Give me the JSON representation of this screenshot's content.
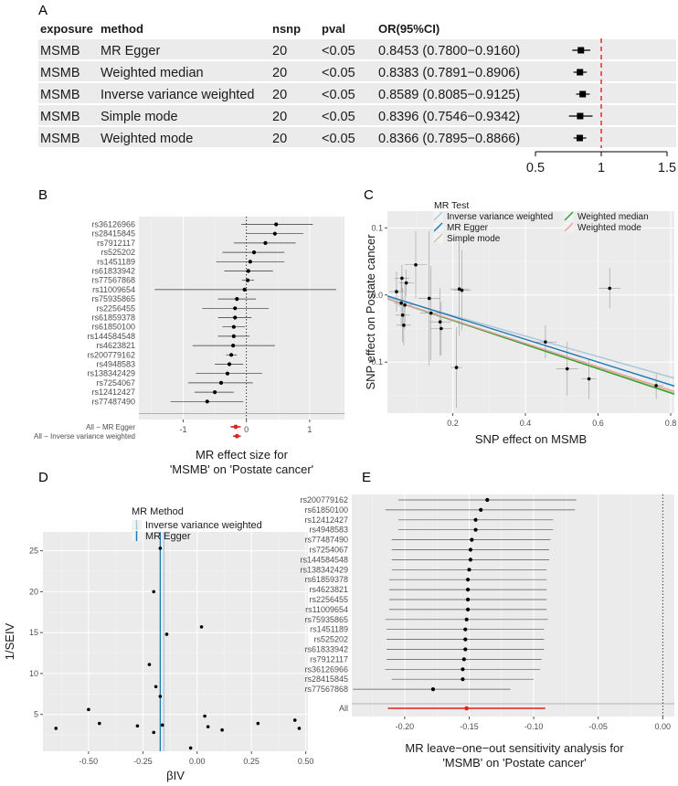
{
  "chart_data": [
    {
      "panel": "A",
      "type": "table",
      "columns": [
        "exposure",
        "method",
        "nsnp",
        "pval",
        "OR(95%CI)"
      ],
      "rows": [
        {
          "exposure": "MSMB",
          "method": "MR Egger",
          "nsnp": "20",
          "pval": "<0.05",
          "or_ci": "0.8453 (0.7800−0.9160)",
          "or": 0.8453,
          "lo": 0.78,
          "hi": 0.916
        },
        {
          "exposure": "MSMB",
          "method": "Weighted median",
          "nsnp": "20",
          "pval": "<0.05",
          "or_ci": "0.8383 (0.7891−0.8906)",
          "or": 0.8383,
          "lo": 0.7891,
          "hi": 0.8906
        },
        {
          "exposure": "MSMB",
          "method": "Inverse variance weighted",
          "nsnp": "20",
          "pval": "<0.05",
          "or_ci": "0.8589 (0.8085−0.9125)",
          "or": 0.8589,
          "lo": 0.8085,
          "hi": 0.9125
        },
        {
          "exposure": "MSMB",
          "method": "Simple mode",
          "nsnp": "20",
          "pval": "<0.05",
          "or_ci": "0.8396 (0.7546−0.9342)",
          "or": 0.8396,
          "lo": 0.7546,
          "hi": 0.9342
        },
        {
          "exposure": "MSMB",
          "method": "Weighted mode",
          "nsnp": "20",
          "pval": "<0.05",
          "or_ci": "0.8366 (0.7895−0.8866)",
          "or": 0.8366,
          "lo": 0.7895,
          "hi": 0.8866
        }
      ],
      "forest_axis": {
        "xlim": [
          0.5,
          1.5
        ],
        "ticks": [
          0.5,
          1,
          1.5
        ],
        "tick_labels": [
          "0.5",
          "1",
          "1.5"
        ],
        "ref": 1
      }
    },
    {
      "panel": "B",
      "type": "scatter",
      "title": "",
      "xlabel": "MR effect size for\n'MSMB' on 'Postate cancer'",
      "ylabel": "",
      "xlim": [
        -1.7,
        1.55
      ],
      "xticks": [
        -1,
        0,
        1
      ],
      "xtick_labels": [
        "-1",
        "0",
        "1"
      ],
      "snps": [
        {
          "label": "rs36126966",
          "b": 0.47,
          "lo": -0.08,
          "hi": 1.05
        },
        {
          "label": "rs28415845",
          "b": 0.45,
          "lo": 0.0,
          "hi": 0.9
        },
        {
          "label": "rs7912117",
          "b": 0.3,
          "lo": -0.2,
          "hi": 0.78
        },
        {
          "label": "rs525202",
          "b": 0.12,
          "lo": -0.38,
          "hi": 0.6
        },
        {
          "label": "rs1451189",
          "b": 0.06,
          "lo": -0.48,
          "hi": 0.6
        },
        {
          "label": "rs61833942",
          "b": 0.03,
          "lo": -0.35,
          "hi": 0.42
        },
        {
          "label": "rs77567868",
          "b": 0.02,
          "lo": -0.07,
          "hi": 0.12
        },
        {
          "label": "rs11009654",
          "b": -0.03,
          "lo": -1.45,
          "hi": 1.42
        },
        {
          "label": "rs75935865",
          "b": -0.15,
          "lo": -0.45,
          "hi": 0.15
        },
        {
          "label": "rs2256455",
          "b": -0.18,
          "lo": -0.7,
          "hi": 0.35
        },
        {
          "label": "rs61859378",
          "b": -0.18,
          "lo": -0.45,
          "hi": 0.08
        },
        {
          "label": "rs61850100",
          "b": -0.2,
          "lo": -0.38,
          "hi": -0.02
        },
        {
          "label": "rs144584548",
          "b": -0.2,
          "lo": -0.45,
          "hi": 0.05
        },
        {
          "label": "rs4623821",
          "b": -0.21,
          "lo": -0.85,
          "hi": 0.45
        },
        {
          "label": "rs200779162",
          "b": -0.24,
          "lo": -0.32,
          "hi": -0.15
        },
        {
          "label": "rs4948583",
          "b": -0.27,
          "lo": -0.5,
          "hi": -0.05
        },
        {
          "label": "rs138342429",
          "b": -0.3,
          "lo": -0.8,
          "hi": 0.25
        },
        {
          "label": "rs7254067",
          "b": -0.4,
          "lo": -0.92,
          "hi": 0.1
        },
        {
          "label": "rs12412427",
          "b": -0.5,
          "lo": -0.82,
          "hi": -0.2
        },
        {
          "label": "rs77487490",
          "b": -0.62,
          "lo": -1.2,
          "hi": -0.05
        }
      ],
      "summaries": [
        {
          "label": "All − MR Egger",
          "b": -0.17,
          "lo": -0.25,
          "hi": -0.09
        },
        {
          "label": "All − Inverse variance weighted",
          "b": -0.15,
          "lo": -0.21,
          "hi": -0.09
        }
      ]
    },
    {
      "panel": "C",
      "type": "scatter",
      "xlabel": "SNP effect on MSMB",
      "ylabel": "SNP effect on Postate cancer",
      "xlim": [
        0.02,
        0.81
      ],
      "ylim": [
        -0.176,
        0.125
      ],
      "xticks": [
        0.2,
        0.4,
        0.6,
        0.8
      ],
      "xtick_labels": [
        "0.2",
        "0.4",
        "0.6",
        "0.8"
      ],
      "yticks": [
        0.1,
        0.0,
        -0.1
      ],
      "ytick_labels": [
        "0.1",
        "0.0",
        "-0.1"
      ],
      "legend_title": "MR Test",
      "legend": [
        {
          "name": "Inverse variance weighted",
          "color": "#a8c8da"
        },
        {
          "name": "MR Egger",
          "color": "#1f78b4"
        },
        {
          "name": "Simple mode",
          "color": "#c8c89e"
        },
        {
          "name": "Weighted median",
          "color": "#33a02c"
        },
        {
          "name": "Weighted mode",
          "color": "#e8a0a0"
        }
      ],
      "lines": [
        {
          "name": "Inverse variance weighted",
          "intercept": 0.0,
          "slope": -0.153
        },
        {
          "name": "MR Egger",
          "intercept": 0.002,
          "slope": -0.17
        },
        {
          "name": "Simple mode",
          "intercept": -0.002,
          "slope": -0.178
        },
        {
          "name": "Weighted median",
          "intercept": -0.002,
          "slope": -0.18
        },
        {
          "name": "Weighted mode",
          "intercept": -0.002,
          "slope": -0.175
        }
      ],
      "points": [
        {
          "x": 0.045,
          "y": 0.005,
          "xe": 0.02,
          "ye": 0.03
        },
        {
          "x": 0.058,
          "y": -0.012,
          "xe": 0.02,
          "ye": 0.035
        },
        {
          "x": 0.06,
          "y": 0.025,
          "xe": 0.02,
          "ye": 0.02
        },
        {
          "x": 0.062,
          "y": -0.03,
          "xe": 0.02,
          "ye": 0.04
        },
        {
          "x": 0.065,
          "y": -0.045,
          "xe": 0.02,
          "ye": 0.03
        },
        {
          "x": 0.068,
          "y": -0.015,
          "xe": 0.02,
          "ye": 0.035
        },
        {
          "x": 0.072,
          "y": 0.018,
          "xe": 0.02,
          "ye": 0.02
        },
        {
          "x": 0.098,
          "y": 0.045,
          "xe": 0.03,
          "ye": 0.05
        },
        {
          "x": 0.135,
          "y": -0.005,
          "xe": 0.03,
          "ye": 0.1
        },
        {
          "x": 0.14,
          "y": -0.027,
          "xe": 0.03,
          "ye": 0.07
        },
        {
          "x": 0.165,
          "y": -0.04,
          "xe": 0.03,
          "ye": 0.05
        },
        {
          "x": 0.168,
          "y": -0.05,
          "xe": 0.03,
          "ye": 0.04
        },
        {
          "x": 0.21,
          "y": -0.108,
          "xe": 0.015,
          "ye": 0.06
        },
        {
          "x": 0.218,
          "y": 0.009,
          "xe": 0.025,
          "ye": 0.07
        },
        {
          "x": 0.225,
          "y": 0.007,
          "xe": 0.025,
          "ye": 0.06
        },
        {
          "x": 0.455,
          "y": -0.07,
          "xe": 0.03,
          "ye": 0.025
        },
        {
          "x": 0.515,
          "y": -0.11,
          "xe": 0.03,
          "ye": 0.04
        },
        {
          "x": 0.575,
          "y": -0.125,
          "xe": 0.02,
          "ye": 0.03
        },
        {
          "x": 0.632,
          "y": 0.01,
          "xe": 0.03,
          "ye": 0.03
        },
        {
          "x": 0.76,
          "y": -0.135,
          "xe": 0.02,
          "ye": 0.02
        }
      ]
    },
    {
      "panel": "D",
      "type": "scatter",
      "xlabel": "βIV",
      "ylabel": "1/SEIV",
      "xlim": [
        -0.71,
        0.51
      ],
      "ylim": [
        0.5,
        27.3
      ],
      "xticks": [
        -0.5,
        -0.25,
        0.0,
        0.25,
        0.5
      ],
      "xtick_labels": [
        "-0.50",
        "-0.25",
        "0.00",
        "0.25",
        "0.50"
      ],
      "yticks": [
        5,
        10,
        15,
        20,
        25
      ],
      "ytick_labels": [
        "5",
        "10",
        "15",
        "20",
        "25"
      ],
      "legend_title": "MR Method",
      "legend": [
        {
          "name": "Inverse variance weighted",
          "color": "#a8c8da"
        },
        {
          "name": "MR Egger",
          "color": "#1f78b4"
        }
      ],
      "vlines": [
        {
          "name": "Inverse variance weighted",
          "x": -0.153
        },
        {
          "name": "MR Egger",
          "x": -0.17
        }
      ],
      "points": [
        {
          "x": -0.65,
          "y": 3.3
        },
        {
          "x": -0.5,
          "y": 5.6
        },
        {
          "x": -0.45,
          "y": 3.9
        },
        {
          "x": -0.275,
          "y": 3.6
        },
        {
          "x": -0.22,
          "y": 11.1
        },
        {
          "x": -0.2,
          "y": 20.0
        },
        {
          "x": -0.2,
          "y": 2.8
        },
        {
          "x": -0.19,
          "y": 8.4
        },
        {
          "x": -0.17,
          "y": 25.3
        },
        {
          "x": -0.17,
          "y": 7.2
        },
        {
          "x": -0.16,
          "y": 3.7
        },
        {
          "x": -0.14,
          "y": 14.8
        },
        {
          "x": -0.03,
          "y": 0.9
        },
        {
          "x": 0.02,
          "y": 15.7
        },
        {
          "x": 0.035,
          "y": 4.8
        },
        {
          "x": 0.05,
          "y": 3.5
        },
        {
          "x": 0.115,
          "y": 3.1
        },
        {
          "x": 0.28,
          "y": 3.9
        },
        {
          "x": 0.45,
          "y": 4.3
        },
        {
          "x": 0.47,
          "y": 3.3
        }
      ]
    },
    {
      "panel": "E",
      "type": "scatter",
      "xlabel": "MR leave−one−out sensitivity analysis for\n'MSMB' on 'Postate cancer'",
      "ylabel": "",
      "xlim": [
        -0.241,
        0.009
      ],
      "xticks": [
        -0.2,
        -0.15,
        -0.1,
        -0.05,
        0.0
      ],
      "xtick_labels": [
        "-0.20",
        "-0.15",
        "-0.10",
        "-0.05",
        "0.00"
      ],
      "snps": [
        {
          "label": "rs200779162",
          "b": -0.136,
          "lo": -0.205,
          "hi": -0.067
        },
        {
          "label": "rs61850100",
          "b": -0.141,
          "lo": -0.215,
          "hi": -0.068
        },
        {
          "label": "rs12412427",
          "b": -0.145,
          "lo": -0.205,
          "hi": -0.085
        },
        {
          "label": "rs4948583",
          "b": -0.145,
          "lo": -0.205,
          "hi": -0.085
        },
        {
          "label": "rs77487490",
          "b": -0.148,
          "lo": -0.21,
          "hi": -0.087
        },
        {
          "label": "rs7254067",
          "b": -0.149,
          "lo": -0.21,
          "hi": -0.088
        },
        {
          "label": "rs144584548",
          "b": -0.149,
          "lo": -0.21,
          "hi": -0.088
        },
        {
          "label": "rs138342429",
          "b": -0.15,
          "lo": -0.21,
          "hi": -0.09
        },
        {
          "label": "rs61859378",
          "b": -0.151,
          "lo": -0.212,
          "hi": -0.09
        },
        {
          "label": "rs4623821",
          "b": -0.151,
          "lo": -0.212,
          "hi": -0.09
        },
        {
          "label": "rs2256455",
          "b": -0.151,
          "lo": -0.212,
          "hi": -0.09
        },
        {
          "label": "rs11009654",
          "b": -0.151,
          "lo": -0.212,
          "hi": -0.09
        },
        {
          "label": "rs75935865",
          "b": -0.152,
          "lo": -0.215,
          "hi": -0.089
        },
        {
          "label": "rs1451189",
          "b": -0.153,
          "lo": -0.214,
          "hi": -0.092
        },
        {
          "label": "rs525202",
          "b": -0.153,
          "lo": -0.214,
          "hi": -0.092
        },
        {
          "label": "rs61833942",
          "b": -0.153,
          "lo": -0.214,
          "hi": -0.092
        },
        {
          "label": "rs7912117",
          "b": -0.154,
          "lo": -0.214,
          "hi": -0.094
        },
        {
          "label": "rs36126966",
          "b": -0.155,
          "lo": -0.215,
          "hi": -0.095
        },
        {
          "label": "rs28415845",
          "b": -0.155,
          "lo": -0.21,
          "hi": -0.1
        },
        {
          "label": "rs77567868",
          "b": -0.178,
          "lo": -0.24,
          "hi": -0.118
        }
      ],
      "summary": {
        "label": "All",
        "b": -0.152,
        "lo": -0.213,
        "hi": -0.091
      }
    }
  ]
}
